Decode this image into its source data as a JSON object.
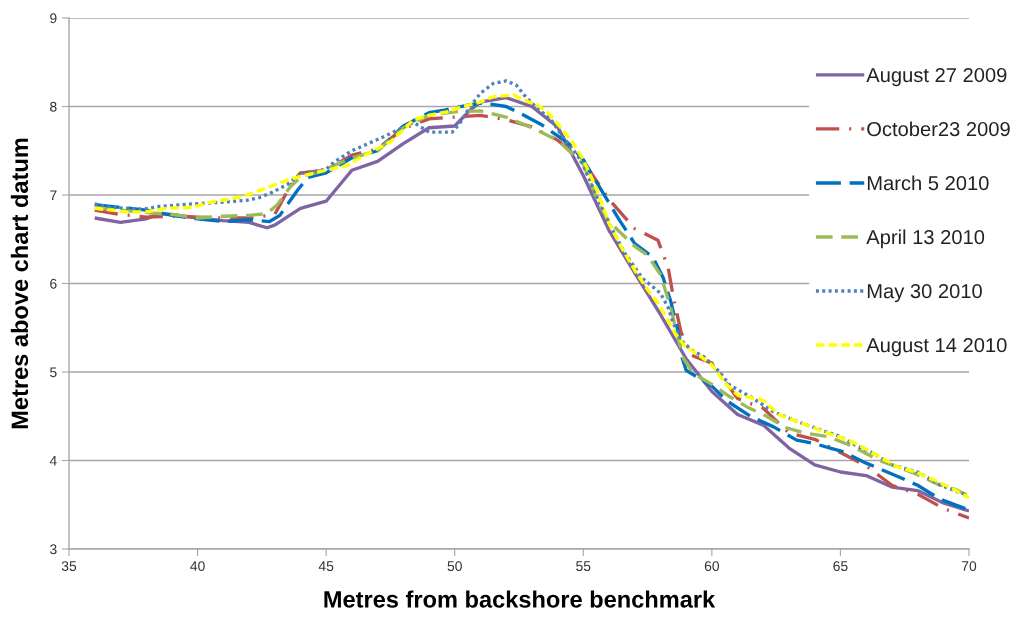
{
  "chart_data": {
    "type": "line",
    "xlabel": "Metres from backshore benchmark",
    "ylabel": "Metres above chart datum",
    "xlim": [
      35,
      70
    ],
    "xticks": [
      35,
      40,
      45,
      50,
      55,
      60,
      65,
      70
    ],
    "ylim": [
      3,
      9
    ],
    "yticks": [
      3,
      4,
      5,
      6,
      7,
      8,
      9
    ],
    "grid": "y",
    "legend": "top right",
    "series": [
      {
        "name": "August 27 2009",
        "color": "#8064a2",
        "line_style": "solid",
        "x": [
          36,
          37,
          38,
          38.5,
          39,
          40,
          41,
          42,
          42.7,
          43,
          44,
          45,
          46,
          47,
          48,
          49,
          50,
          50.6,
          51,
          52,
          53,
          54,
          55,
          56,
          57,
          58,
          59,
          60,
          61,
          62,
          63,
          64,
          65,
          66,
          67,
          68,
          69,
          70
        ],
        "values": [
          6.74,
          6.69,
          6.73,
          6.79,
          6.78,
          6.74,
          6.71,
          6.69,
          6.63,
          6.66,
          6.85,
          6.93,
          7.28,
          7.38,
          7.58,
          7.76,
          7.78,
          7.96,
          8.05,
          8.1,
          8.0,
          7.77,
          7.22,
          6.6,
          6.12,
          5.65,
          5.15,
          4.78,
          4.52,
          4.4,
          4.14,
          3.95,
          3.87,
          3.83,
          3.7,
          3.66,
          3.52,
          3.43
        ]
      },
      {
        "name": "October23 2009",
        "color": "#c0504d",
        "line_style": "dashdot",
        "x": [
          36,
          37,
          38,
          39,
          40,
          41,
          42,
          43,
          43.6,
          44,
          45,
          46,
          47,
          48,
          49,
          50,
          51,
          52,
          53,
          54,
          55,
          56,
          57,
          57.9,
          58.3,
          58.5,
          58.8,
          59.2,
          60,
          61,
          62,
          63,
          64,
          65,
          66,
          67,
          68,
          69,
          70
        ],
        "values": [
          6.83,
          6.78,
          6.75,
          6.76,
          6.75,
          6.74,
          6.74,
          6.78,
          7.1,
          7.25,
          7.28,
          7.45,
          7.52,
          7.75,
          7.86,
          7.88,
          7.9,
          7.85,
          7.77,
          7.62,
          7.38,
          6.95,
          6.62,
          6.49,
          6.18,
          5.85,
          5.45,
          5.19,
          5.1,
          4.7,
          4.59,
          4.31,
          4.24,
          4.09,
          3.94,
          3.72,
          3.62,
          3.46,
          3.35
        ]
      },
      {
        "name": "March 5 2010",
        "color": "#0070c0",
        "line_style": "longdash",
        "x": [
          36,
          37,
          38,
          39,
          40,
          41,
          42,
          42.8,
          43.2,
          43.9,
          44.3,
          45,
          46,
          47,
          48,
          49,
          49.6,
          50.6,
          51.1,
          52,
          52.5,
          53.4,
          54.4,
          55,
          55.4,
          56.4,
          57,
          57.7,
          58.1,
          58.4,
          58.7,
          58.8,
          59,
          59.5,
          60,
          60.6,
          61.5,
          62.4,
          63.3,
          64,
          64.6,
          65.1,
          66,
          66.5,
          67.3,
          68,
          68.5,
          69,
          70
        ],
        "values": [
          6.89,
          6.86,
          6.83,
          6.77,
          6.73,
          6.7,
          6.72,
          6.7,
          6.77,
          7.06,
          7.2,
          7.25,
          7.42,
          7.5,
          7.78,
          7.93,
          7.96,
          8.02,
          8.04,
          8.0,
          7.93,
          7.79,
          7.59,
          7.4,
          7.2,
          6.72,
          6.45,
          6.3,
          6.07,
          5.8,
          5.44,
          5.2,
          5.02,
          4.93,
          4.84,
          4.67,
          4.5,
          4.38,
          4.23,
          4.19,
          4.14,
          4.1,
          3.97,
          3.91,
          3.81,
          3.72,
          3.63,
          3.55,
          3.44
        ]
      },
      {
        "name": "April 13 2010",
        "color": "#9bbb59",
        "line_style": "dashed",
        "x": [
          36,
          37,
          38,
          39,
          40,
          41,
          42,
          42.7,
          43.1,
          43.6,
          44,
          44.8,
          46,
          47,
          48,
          49,
          50,
          51,
          52,
          53,
          54,
          55,
          55.6,
          56,
          57,
          57.5,
          58,
          58.4,
          58.7,
          58.9,
          59.3,
          60,
          60.7,
          61.4,
          62,
          62.9,
          63.6,
          64.5,
          65.3,
          66,
          66.5,
          67.3,
          68,
          68.8,
          69.5,
          70
        ],
        "values": [
          6.86,
          6.83,
          6.8,
          6.78,
          6.74,
          6.76,
          6.77,
          6.79,
          6.89,
          7.09,
          7.2,
          7.27,
          7.42,
          7.5,
          7.76,
          7.9,
          7.94,
          7.95,
          7.88,
          7.76,
          7.62,
          7.35,
          6.9,
          6.7,
          6.42,
          6.32,
          6.1,
          5.73,
          5.36,
          5.15,
          4.98,
          4.86,
          4.72,
          4.6,
          4.52,
          4.37,
          4.31,
          4.27,
          4.18,
          4.08,
          4.0,
          3.92,
          3.84,
          3.73,
          3.67,
          3.6
        ]
      },
      {
        "name": "May 30 2010",
        "color": "#4f81bd",
        "line_style": "dotted",
        "x": [
          36,
          36.6,
          37.9,
          38.5,
          39.8,
          40.5,
          41.9,
          42.4,
          42.9,
          43.5,
          44,
          45,
          45.3,
          46,
          47.1,
          48.4,
          49,
          49.9,
          50.2,
          50.6,
          51,
          51.5,
          52,
          52.4,
          52.7,
          53.2,
          53.7,
          54.1,
          54.9,
          55.5,
          56,
          56.6,
          57.3,
          58,
          58.3,
          58.5,
          58.8,
          59.2,
          59.7,
          60.3,
          60.7,
          61.5,
          62.4,
          63.5,
          64.5,
          65,
          65.6,
          66.3,
          67,
          68,
          68.9,
          69.9
        ],
        "values": [
          6.9,
          6.86,
          6.84,
          6.87,
          6.9,
          6.91,
          6.94,
          6.97,
          7.03,
          7.12,
          7.24,
          7.29,
          7.37,
          7.5,
          7.64,
          7.82,
          7.71,
          7.71,
          7.81,
          8.0,
          8.15,
          8.26,
          8.29,
          8.24,
          8.13,
          7.98,
          7.87,
          7.7,
          7.4,
          7.0,
          6.68,
          6.35,
          6.06,
          5.89,
          5.73,
          5.55,
          5.36,
          5.25,
          5.17,
          5.0,
          4.85,
          4.72,
          4.55,
          4.42,
          4.32,
          4.27,
          4.17,
          4.08,
          3.95,
          3.87,
          3.72,
          3.61
        ]
      },
      {
        "name": "August 14 2010",
        "color": "#ffff00",
        "line_style": "shortdash",
        "x": [
          36,
          37.2,
          38,
          38.8,
          39.8,
          40.4,
          41.7,
          42.3,
          42.7,
          43.5,
          44,
          45,
          45.8,
          46.5,
          47.5,
          48.4,
          49,
          49.7,
          50.3,
          51,
          51.5,
          52.3,
          52.7,
          53.2,
          53.6,
          54.1,
          54.6,
          55,
          55.5,
          56,
          56.5,
          57,
          57.5,
          57.9,
          58.3,
          58.6,
          59,
          59.5,
          60,
          60.5,
          61,
          62,
          62.6,
          63.5,
          64.5,
          65.3,
          65.8,
          66.3,
          67.2,
          68,
          68.8,
          69.5,
          70
        ],
        "values": [
          6.85,
          6.81,
          6.81,
          6.85,
          6.86,
          6.91,
          6.98,
          7.04,
          7.08,
          7.17,
          7.21,
          7.28,
          7.33,
          7.45,
          7.6,
          7.85,
          7.9,
          7.94,
          8.0,
          8.05,
          8.11,
          8.13,
          8.07,
          8.02,
          7.94,
          7.77,
          7.59,
          7.4,
          7.08,
          6.68,
          6.4,
          6.15,
          5.93,
          5.78,
          5.58,
          5.42,
          5.28,
          5.19,
          5.08,
          4.88,
          4.74,
          4.68,
          4.52,
          4.42,
          4.31,
          4.23,
          4.16,
          4.08,
          3.93,
          3.86,
          3.76,
          3.66,
          3.58
        ]
      }
    ]
  }
}
